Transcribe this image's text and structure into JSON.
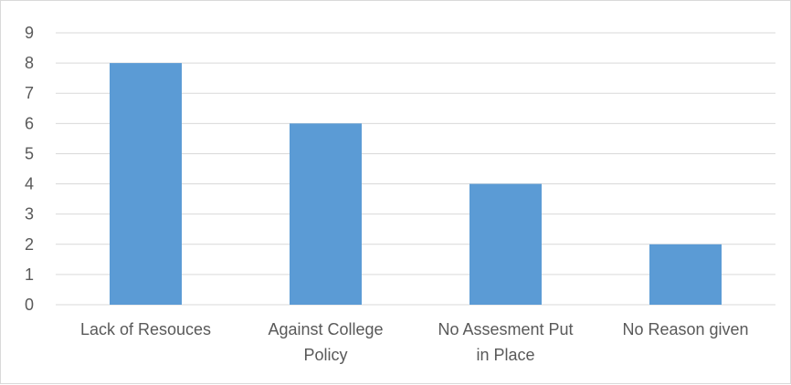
{
  "chart_data": {
    "type": "bar",
    "categories": [
      [
        "Lack of Resouces"
      ],
      [
        "Against College",
        "Policy"
      ],
      [
        "No Assesment Put",
        "in Place"
      ],
      [
        "No Reason given"
      ]
    ],
    "values": [
      8,
      6,
      4,
      2
    ],
    "ylim": [
      0,
      9
    ],
    "yticks": [
      0,
      1,
      2,
      3,
      4,
      5,
      6,
      7,
      8,
      9
    ],
    "grid": true,
    "legend": "none",
    "bar_color": "#5b9bd5",
    "grid_color": "#d9d9d9",
    "text_color": "#595959"
  }
}
